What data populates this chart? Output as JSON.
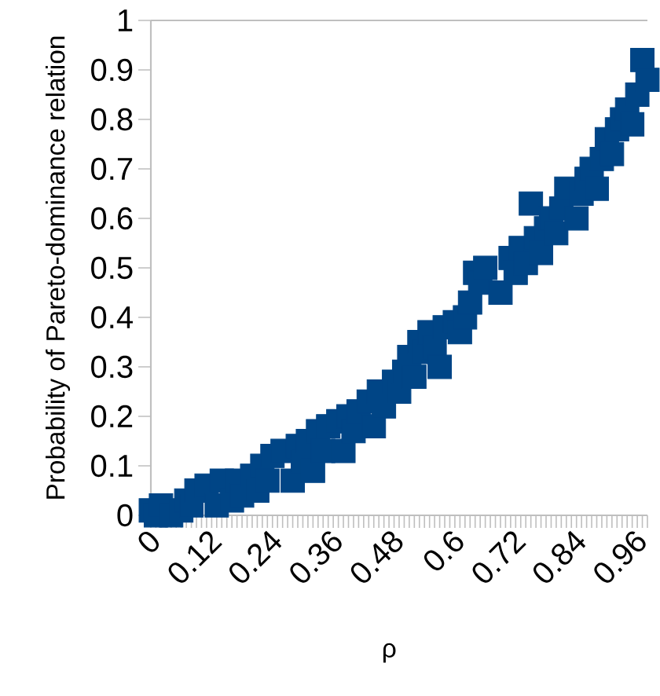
{
  "chart_data": {
    "type": "scatter",
    "xlabel": "ρ",
    "ylabel": "Probability of Pareto-dominance relation",
    "marker": "square",
    "grid": false,
    "x": [
      0,
      0.01,
      0.02,
      0.03,
      0.04,
      0.05,
      0.06,
      0.07,
      0.08,
      0.09,
      0.1,
      0.11,
      0.12,
      0.13,
      0.14,
      0.15,
      0.16,
      0.17,
      0.18,
      0.19,
      0.2,
      0.21,
      0.22,
      0.23,
      0.24,
      0.25,
      0.26,
      0.27,
      0.28,
      0.29,
      0.3,
      0.31,
      0.32,
      0.33,
      0.34,
      0.35,
      0.36,
      0.37,
      0.38,
      0.39,
      0.4,
      0.41,
      0.42,
      0.43,
      0.44,
      0.45,
      0.46,
      0.47,
      0.48,
      0.49,
      0.5,
      0.51,
      0.52,
      0.53,
      0.54,
      0.55,
      0.56,
      0.57,
      0.58,
      0.59,
      0.6,
      0.61,
      0.62,
      0.63,
      0.64,
      0.65,
      0.66,
      0.67,
      0.68,
      0.69,
      0.7,
      0.71,
      0.72,
      0.73,
      0.74,
      0.75,
      0.76,
      0.77,
      0.78,
      0.79,
      0.8,
      0.81,
      0.82,
      0.83,
      0.84,
      0.85,
      0.86,
      0.87,
      0.88,
      0.89,
      0.9,
      0.91,
      0.92,
      0.93,
      0.94,
      0.95,
      0.96,
      0.97,
      0.98
    ],
    "series": [
      {
        "color": "#004586",
        "values": [
          0.01,
          0.0,
          0.02,
          null,
          0.0,
          null,
          0.01,
          0.03,
          0.02,
          0.05,
          null,
          0.06,
          null,
          0.02,
          0.07,
          null,
          0.03,
          0.07,
          0.04,
          null,
          0.08,
          0.05,
          0.1,
          0.07,
          0.12,
          null,
          0.13,
          null,
          0.07,
          0.14,
          0.11,
          0.15,
          0.09,
          0.17,
          0.13,
          0.18,
          null,
          0.19,
          0.13,
          0.2,
          0.17,
          0.21,
          null,
          0.23,
          0.18,
          0.25,
          0.22,
          null,
          0.27,
          0.25,
          0.29,
          0.32,
          0.28,
          0.35,
          0.33,
          0.37,
          0.34,
          0.3,
          0.38,
          null,
          0.39,
          0.37,
          0.4,
          0.43,
          0.49,
          0.47,
          0.5,
          null,
          null,
          0.45,
          null,
          0.52,
          0.49,
          0.54,
          0.51,
          0.63,
          0.56,
          0.53,
          0.58,
          0.6,
          0.57,
          0.62,
          0.66,
          null,
          0.6,
          0.65,
          0.68,
          0.7,
          0.66,
          0.72,
          0.76,
          0.73,
          0.78,
          0.8,
          0.82,
          0.79,
          0.85,
          0.92,
          0.88
        ]
      }
    ],
    "xlim": [
      0,
      0.98
    ],
    "ylim": [
      0,
      1
    ],
    "xticks": [
      0,
      {
        "value": 0.01,
        "label": null
      },
      {
        "value": 0.02,
        "label": null
      },
      {
        "value": 0.03,
        "label": null
      },
      {
        "value": 0.04,
        "label": null
      },
      {
        "value": 0.05,
        "label": null
      },
      {
        "value": 0.06,
        "label": null
      },
      {
        "value": 0.07,
        "label": null
      },
      {
        "value": 0.08,
        "label": null
      },
      {
        "value": 0.09,
        "label": null
      },
      {
        "value": 0.1,
        "label": null
      },
      {
        "value": 0.11,
        "label": null
      },
      0.12,
      {
        "value": 0.13,
        "label": null
      },
      {
        "value": 0.14,
        "label": null
      },
      {
        "value": 0.15,
        "label": null
      },
      {
        "value": 0.16,
        "label": null
      },
      {
        "value": 0.17,
        "label": null
      },
      {
        "value": 0.18,
        "label": null
      },
      {
        "value": 0.19,
        "label": null
      },
      {
        "value": 0.2,
        "label": null
      },
      {
        "value": 0.21,
        "label": null
      },
      {
        "value": 0.22,
        "label": null
      },
      {
        "value": 0.23,
        "label": null
      },
      0.24,
      {
        "value": 0.25,
        "label": null
      },
      {
        "value": 0.26,
        "label": null
      },
      {
        "value": 0.27,
        "label": null
      },
      {
        "value": 0.28,
        "label": null
      },
      {
        "value": 0.29,
        "label": null
      },
      {
        "value": 0.3,
        "label": null
      },
      {
        "value": 0.31,
        "label": null
      },
      {
        "value": 0.32,
        "label": null
      },
      {
        "value": 0.33,
        "label": null
      },
      {
        "value": 0.34,
        "label": null
      },
      {
        "value": 0.35,
        "label": null
      },
      0.36,
      {
        "value": 0.37,
        "label": null
      },
      {
        "value": 0.38,
        "label": null
      },
      {
        "value": 0.39,
        "label": null
      },
      {
        "value": 0.4,
        "label": null
      },
      {
        "value": 0.41,
        "label": null
      },
      {
        "value": 0.42,
        "label": null
      },
      {
        "value": 0.43,
        "label": null
      },
      {
        "value": 0.44,
        "label": null
      },
      {
        "value": 0.45,
        "label": null
      },
      {
        "value": 0.46,
        "label": null
      },
      {
        "value": 0.47,
        "label": null
      },
      0.48,
      {
        "value": 0.49,
        "label": null
      },
      {
        "value": 0.5,
        "label": null
      },
      {
        "value": 0.51,
        "label": null
      },
      {
        "value": 0.52,
        "label": null
      },
      {
        "value": 0.53,
        "label": null
      },
      {
        "value": 0.54,
        "label": null
      },
      {
        "value": 0.55,
        "label": null
      },
      {
        "value": 0.56,
        "label": null
      },
      {
        "value": 0.57,
        "label": null
      },
      {
        "value": 0.58,
        "label": null
      },
      {
        "value": 0.59,
        "label": null
      },
      0.6,
      {
        "value": 0.61,
        "label": null
      },
      {
        "value": 0.62,
        "label": null
      },
      {
        "value": 0.63,
        "label": null
      },
      {
        "value": 0.64,
        "label": null
      },
      {
        "value": 0.65,
        "label": null
      },
      {
        "value": 0.66,
        "label": null
      },
      {
        "value": 0.67,
        "label": null
      },
      {
        "value": 0.68,
        "label": null
      },
      {
        "value": 0.69,
        "label": null
      },
      {
        "value": 0.7,
        "label": null
      },
      {
        "value": 0.71,
        "label": null
      },
      0.72,
      {
        "value": 0.73,
        "label": null
      },
      {
        "value": 0.74,
        "label": null
      },
      {
        "value": 0.75,
        "label": null
      },
      {
        "value": 0.76,
        "label": null
      },
      {
        "value": 0.77,
        "label": null
      },
      {
        "value": 0.78,
        "label": null
      },
      {
        "value": 0.79,
        "label": null
      },
      {
        "value": 0.8,
        "label": null
      },
      {
        "value": 0.81,
        "label": null
      },
      {
        "value": 0.82,
        "label": null
      },
      {
        "value": 0.83,
        "label": null
      },
      0.84,
      {
        "value": 0.85,
        "label": null
      },
      {
        "value": 0.86,
        "label": null
      },
      {
        "value": 0.87,
        "label": null
      },
      {
        "value": 0.88,
        "label": null
      },
      {
        "value": 0.89,
        "label": null
      },
      {
        "value": 0.9,
        "label": null
      },
      {
        "value": 0.91,
        "label": null
      },
      {
        "value": 0.92,
        "label": null
      },
      {
        "value": 0.93,
        "label": null
      },
      {
        "value": 0.94,
        "label": null
      },
      {
        "value": 0.95,
        "label": null
      },
      0.96,
      {
        "value": 0.97,
        "label": null
      },
      {
        "value": 0.98,
        "label": null
      }
    ],
    "yticks": [
      0,
      0.1,
      0.2,
      0.3,
      0.4,
      0.5,
      0.6,
      0.7,
      0.8,
      0.9,
      1
    ]
  }
}
